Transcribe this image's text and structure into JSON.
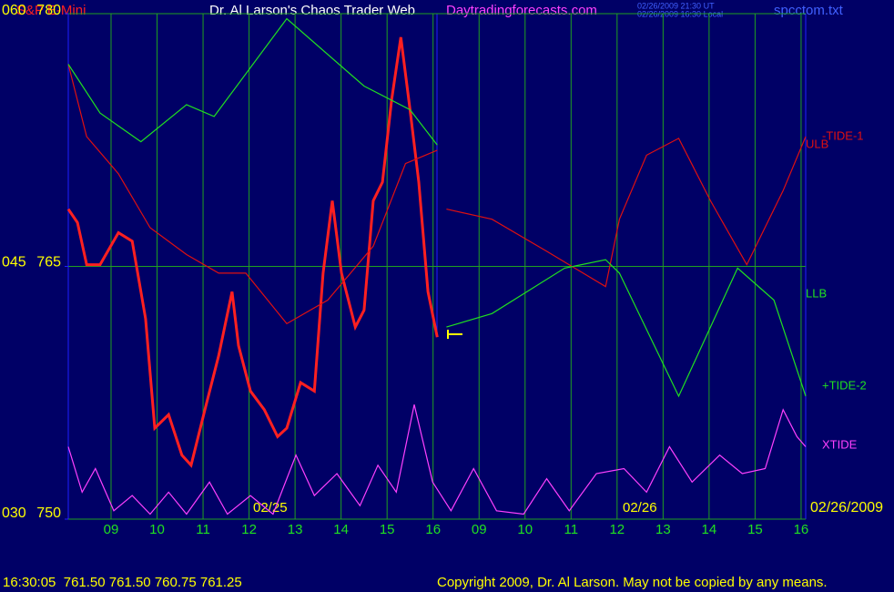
{
  "chart_data": {
    "type": "line",
    "title": "Dr. Al Larson's Chaos Trader Web",
    "subtitle": "Daytradingforecasts.com",
    "timestamps": [
      "02/26/2009 21:30 UT",
      "02/26/2009 16:30 Local"
    ],
    "file_name": "spcctom.txt",
    "status": "16:30:05  761.50 761.50 760.75 761.25",
    "copyright": "Copyright 2009, Dr. Al Larson. May not be copied by any means.",
    "date_labels": [
      "02/25",
      "02/26",
      "02/26/2009"
    ],
    "xlim": [
      0.07,
      16.1
    ],
    "xticks": [
      {
        "value": 1,
        "label": "09"
      },
      {
        "value": 2,
        "label": "10"
      },
      {
        "value": 3,
        "label": "11"
      },
      {
        "value": 4,
        "label": "12"
      },
      {
        "value": 5,
        "label": "13"
      },
      {
        "value": 6,
        "label": "14"
      },
      {
        "value": 7,
        "label": "15"
      },
      {
        "value": 8,
        "label": "16"
      },
      {
        "value": 9,
        "label": "09"
      },
      {
        "value": 10,
        "label": "10"
      },
      {
        "value": 11,
        "label": "11"
      },
      {
        "value": 12,
        "label": "12"
      },
      {
        "value": 13,
        "label": "13"
      },
      {
        "value": 14,
        "label": "14"
      },
      {
        "value": 15,
        "label": "15"
      },
      {
        "value": 16,
        "label": "16"
      }
    ],
    "ylim": [
      750,
      780
    ],
    "yticks": [
      750,
      765,
      780
    ],
    "y2lim": [
      30,
      60
    ],
    "y2ticks": [
      {
        "value": 30,
        "label": "030"
      },
      {
        "value": 45,
        "label": "045"
      },
      {
        "value": 60,
        "label": "060"
      }
    ],
    "grid": true,
    "series": [
      {
        "name": "S&P E-Mini",
        "color": "#ff2020",
        "x": [
          0.07,
          0.27,
          0.47,
          0.76,
          1.16,
          1.46,
          1.75,
          1.95,
          2.25,
          2.54,
          2.74,
          3.04,
          3.34,
          3.63,
          3.77,
          4.03,
          4.33,
          4.62,
          4.82,
          5.12,
          5.42,
          5.61,
          5.81,
          6.01,
          6.31,
          6.5,
          6.7,
          6.9,
          7.1,
          7.3,
          7.5,
          7.69,
          7.89,
          8.09
        ],
        "values": [
          768.4,
          767.6,
          765.1,
          765.1,
          767.0,
          766.5,
          761.9,
          755.4,
          756.2,
          753.8,
          753.2,
          756.5,
          759.7,
          763.5,
          760.3,
          757.6,
          756.5,
          754.9,
          755.4,
          758.1,
          757.6,
          764.6,
          768.9,
          764.6,
          761.4,
          762.4,
          768.9,
          770.0,
          774.9,
          778.6,
          774.3,
          770.0,
          763.5,
          760.8
        ]
      },
      {
        "name": "-TIDE-1",
        "color": "#e01010",
        "x": [
          0.07,
          0.47,
          1.16,
          1.85,
          2.64,
          3.34,
          3.93,
          4.82,
          5.71,
          6.7,
          7.4,
          8.09
        ],
        "values": [
          777.0,
          772.7,
          770.5,
          767.3,
          765.7,
          764.6,
          764.6,
          761.6,
          763.0,
          766.2,
          771.1,
          771.9
        ]
      },
      {
        "name": "ULB",
        "color": "#e01010",
        "x": [
          8.29,
          9.28,
          10.47,
          11.75,
          12.05,
          12.64,
          13.34,
          14.03,
          14.82,
          15.61,
          16.1
        ],
        "values": [
          768.4,
          767.8,
          765.9,
          763.8,
          767.8,
          771.6,
          772.6,
          768.9,
          765.1,
          769.5,
          772.7
        ]
      },
      {
        "name": "LLB",
        "color": "#20e020",
        "x": [
          8.29,
          9.28,
          10.86,
          11.75,
          12.05,
          13.34,
          14.62,
          15.41,
          16.1
        ],
        "values": [
          761.4,
          762.2,
          764.9,
          765.4,
          764.6,
          757.3,
          764.9,
          763.0,
          757.3
        ]
      },
      {
        "name": "+TIDE-2",
        "color": "#20e020",
        "x": [
          0.07,
          0.76,
          1.65,
          2.64,
          3.24,
          4.82,
          6.5,
          7.5,
          8.09
        ],
        "values": [
          777.0,
          774.1,
          772.4,
          774.6,
          773.9,
          779.7,
          775.7,
          774.3,
          772.2
        ]
      },
      {
        "name": "XTIDE",
        "color": "#ff40ff",
        "x": [
          0.07,
          0.37,
          0.66,
          1.06,
          1.46,
          1.85,
          2.25,
          2.64,
          3.14,
          3.53,
          4.03,
          4.52,
          5.02,
          5.42,
          5.91,
          6.41,
          6.8,
          7.2,
          7.59,
          7.99,
          8.39,
          8.88,
          9.38,
          9.97,
          10.47,
          10.96,
          11.55,
          12.15,
          12.64,
          13.14,
          13.63,
          14.23,
          14.72,
          15.22,
          15.61,
          15.91,
          16.1
        ],
        "values": [
          754.3,
          751.6,
          753.0,
          750.5,
          751.4,
          750.3,
          751.6,
          750.3,
          752.2,
          750.3,
          751.4,
          750.3,
          753.8,
          751.4,
          752.7,
          750.8,
          753.2,
          751.6,
          756.8,
          752.2,
          750.5,
          753.0,
          750.5,
          750.3,
          752.4,
          750.5,
          752.7,
          753.0,
          751.6,
          754.3,
          752.2,
          753.8,
          752.7,
          753.0,
          756.5,
          754.9,
          754.3
        ]
      }
    ]
  }
}
